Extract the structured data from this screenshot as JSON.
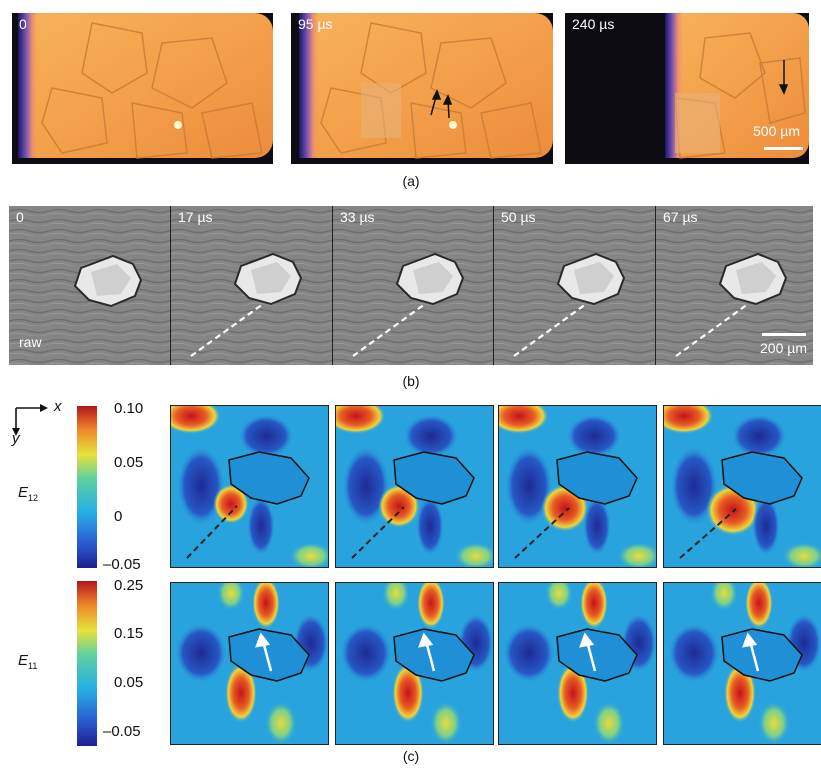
{
  "panel_a": {
    "caption": "(a)",
    "frames": [
      "0",
      "95 µs",
      "240 µs"
    ],
    "scale_bar": "500 µm"
  },
  "panel_b": {
    "caption": "(b)",
    "frames": [
      "0",
      "17 µs",
      "33 µs",
      "50 µs",
      "67 µs"
    ],
    "raw_label": "raw",
    "scale_bar": "200 µm"
  },
  "panel_c": {
    "caption": "(c)",
    "axes": {
      "x": "x",
      "y": "y"
    },
    "e12": {
      "symbol": "E",
      "subscript": "12",
      "ticks": [
        "0.10",
        "0.05",
        "0",
        "–0.05"
      ]
    },
    "e11": {
      "symbol": "E",
      "subscript": "11",
      "ticks": [
        "0.25",
        "0.15",
        "0.05",
        "–0.05"
      ]
    }
  },
  "colors": {
    "orange": "#f4a24a",
    "map_blue": "#29a3de",
    "map_dark_blue": "#2a2f9c",
    "map_red": "#d42a1c",
    "map_yellow": "#e8d63a"
  }
}
